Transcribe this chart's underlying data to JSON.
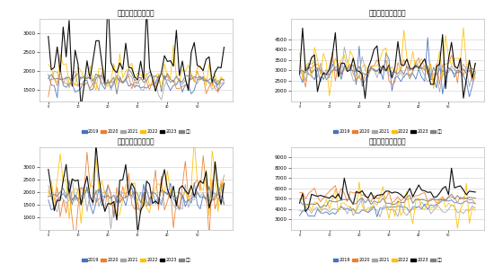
{
  "titles": [
    "啤酒上游原料（元）",
    "啤酒下游产品（元）",
    "分酷上游原料（元）",
    "分酷下游产品（元）"
  ],
  "legend_labels": [
    [
      "2019",
      "2020",
      "2021",
      "2022",
      "2023",
      "平均"
    ],
    [
      "2019",
      "2020",
      "2021",
      "2022",
      "2023",
      "平均"
    ],
    [
      "2019",
      "2020",
      "2021",
      "2022",
      "2023",
      "平均"
    ],
    [
      "2019",
      "2020",
      "2021",
      "2022",
      "2023",
      "平均"
    ]
  ],
  "line_colors": [
    [
      "#4472C4",
      "#ED7D31",
      "#A5A5A5",
      "#FFC000",
      "#000000",
      "#808080"
    ],
    [
      "#4472C4",
      "#ED7D31",
      "#A5A5A5",
      "#FFC000",
      "#000000",
      "#808080"
    ],
    [
      "#4472C4",
      "#ED7D31",
      "#A5A5A5",
      "#FFC000",
      "#000000",
      "#808080"
    ],
    [
      "#4472C4",
      "#ED7D31",
      "#A5A5A5",
      "#FFC000",
      "#000000",
      "#808080"
    ]
  ],
  "subplot_configs": [
    {
      "ylim": [
        1200,
        3400
      ],
      "yticks": [
        1500,
        2000,
        2500,
        3000
      ]
    },
    {
      "ylim": [
        1500,
        5500
      ],
      "yticks": [
        2000,
        2500,
        3000,
        3500,
        4000,
        4500
      ]
    },
    {
      "ylim": [
        500,
        3800
      ],
      "yticks": [
        1000,
        1500,
        2000,
        2500,
        3000
      ]
    },
    {
      "ylim": [
        2000,
        10000
      ],
      "yticks": [
        3000,
        4000,
        5000,
        6000,
        7000,
        8000,
        9000
      ]
    }
  ],
  "n_points": 60,
  "bg_color": "#FFFFFF",
  "grid_color": "#CCCCCC",
  "title_fontsize": 5.5,
  "tick_fontsize": 4.0,
  "legend_fontsize": 3.5
}
